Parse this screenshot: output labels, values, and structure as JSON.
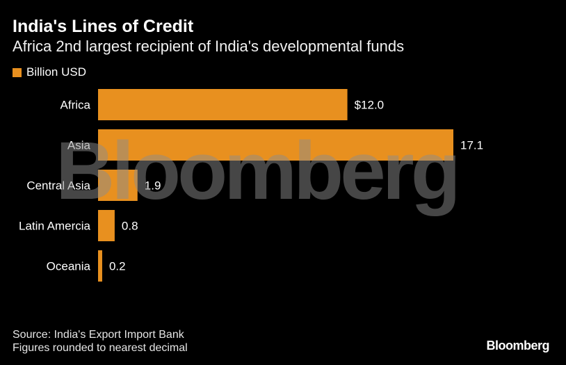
{
  "header": {
    "title": "India's Lines of Credit",
    "subtitle": "Africa 2nd largest recipient of India's developmental funds"
  },
  "legend": {
    "label": "Billion USD"
  },
  "colors": {
    "bar": "#e8901f",
    "background": "#000000"
  },
  "watermark": {
    "text": "Bloomberg"
  },
  "footer": {
    "source": "Source: India's Export Import Bank",
    "note": "Figures rounded to nearest decimal",
    "brand": "Bloomberg"
  },
  "chart_data": {
    "type": "bar",
    "orientation": "horizontal",
    "categories": [
      "Africa",
      "Asia",
      "Central Asia",
      "Latin Amercia",
      "Oceania"
    ],
    "values": [
      12.0,
      17.1,
      1.9,
      0.8,
      0.2
    ],
    "data_labels": [
      "$12.0",
      "17.1",
      "1.9",
      "0.8",
      "0.2"
    ],
    "series": [
      {
        "name": "Billion USD",
        "values": [
          12.0,
          17.1,
          1.9,
          0.8,
          0.2
        ]
      }
    ],
    "title": "India's Lines of Credit",
    "subtitle": "Africa 2nd largest recipient of India's developmental funds",
    "xlim": [
      0,
      17.1
    ],
    "grid": false,
    "legend_position": "top-left"
  }
}
